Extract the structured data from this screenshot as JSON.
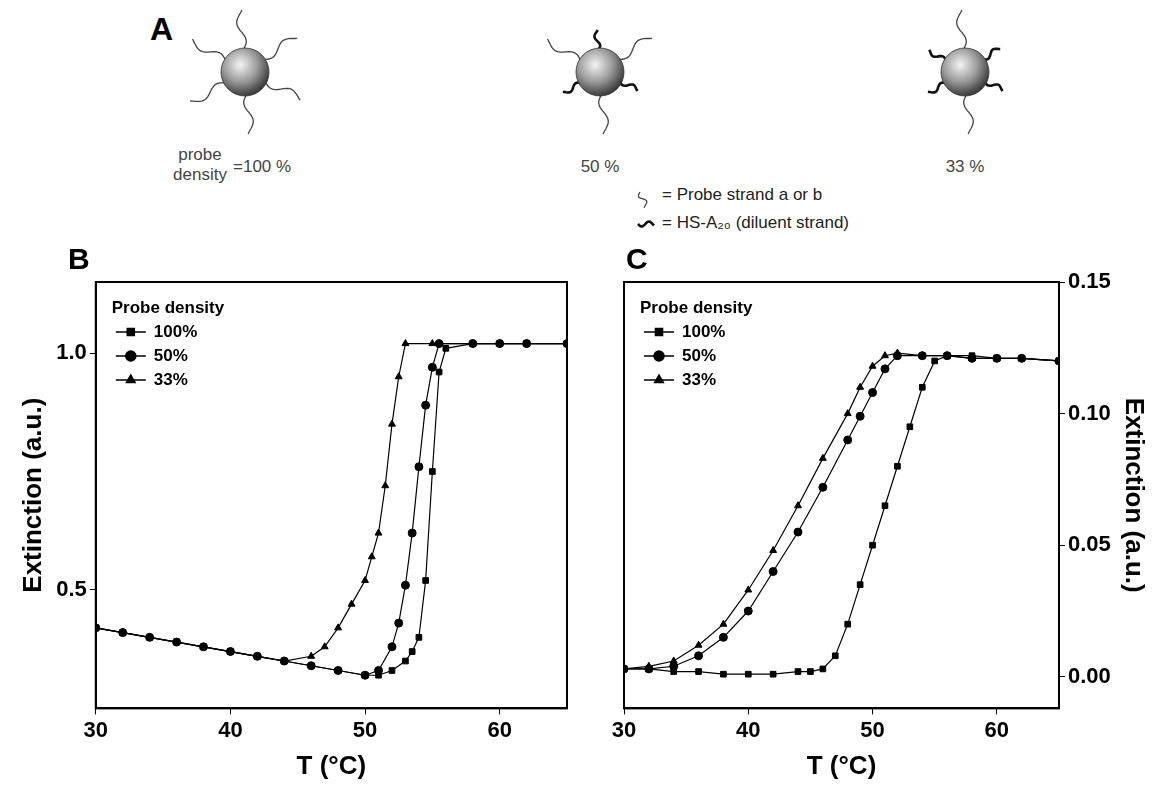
{
  "diagram": {
    "panel_label": "A",
    "particles": [
      {
        "caption": "probe density",
        "label": "=100 %"
      },
      {
        "label": "50 %"
      },
      {
        "label": "33 %"
      }
    ],
    "key": [
      {
        "symbol": "probe",
        "text": "= Probe strand a or b"
      },
      {
        "symbol": "diluent",
        "text": "= HS-A₂₀ (diluent strand)"
      }
    ]
  },
  "chart_data": [
    {
      "type": "line",
      "panel_label": "B",
      "x_label": "T (°C)",
      "y_label": "Extinction (a.u.)",
      "xlim": [
        30,
        65
      ],
      "xticks": [
        30,
        40,
        50,
        60
      ],
      "ylim": [
        0.25,
        1.15
      ],
      "yticks": [
        0.5,
        {
          "value": 1,
          "label": "1.0"
        }
      ],
      "grid": false,
      "legend": "upper left",
      "legend_title": "Probe density",
      "series": [
        {
          "name": "100%",
          "color": "#000000",
          "marker": "square",
          "line_style": "solid",
          "x": [
            30,
            32,
            34,
            36,
            38,
            40,
            42,
            44,
            46,
            48,
            50,
            51,
            52,
            53,
            53.5,
            54,
            54.5,
            55,
            55.5,
            56,
            58,
            60,
            62,
            65
          ],
          "values": [
            0.42,
            0.41,
            0.4,
            0.39,
            0.38,
            0.37,
            0.36,
            0.35,
            0.34,
            0.33,
            0.32,
            0.32,
            0.33,
            0.35,
            0.37,
            0.4,
            0.52,
            0.75,
            0.96,
            1.01,
            1.02,
            1.02,
            1.02,
            1.02
          ]
        },
        {
          "name": "50%",
          "color": "#000000",
          "marker": "circle",
          "line_style": "solid",
          "x": [
            30,
            32,
            34,
            36,
            38,
            40,
            42,
            44,
            46,
            48,
            50,
            51,
            52,
            52.5,
            53,
            53.5,
            54,
            54.5,
            55,
            55.5,
            58,
            60,
            62,
            65
          ],
          "values": [
            0.42,
            0.41,
            0.4,
            0.39,
            0.38,
            0.37,
            0.36,
            0.35,
            0.34,
            0.33,
            0.32,
            0.33,
            0.38,
            0.43,
            0.51,
            0.62,
            0.76,
            0.89,
            0.97,
            1.02,
            1.02,
            1.02,
            1.02,
            1.02
          ]
        },
        {
          "name": "33%",
          "color": "#000000",
          "marker": "triangle",
          "line_style": "solid",
          "x": [
            30,
            32,
            34,
            36,
            38,
            40,
            42,
            44,
            46,
            47,
            48,
            49,
            50,
            50.5,
            51,
            51.5,
            52,
            52.5,
            53,
            55,
            58,
            60,
            62,
            65
          ],
          "values": [
            0.42,
            0.41,
            0.4,
            0.39,
            0.38,
            0.37,
            0.36,
            0.35,
            0.36,
            0.38,
            0.42,
            0.47,
            0.52,
            0.57,
            0.62,
            0.72,
            0.85,
            0.95,
            1.02,
            1.02,
            1.02,
            1.02,
            1.02,
            1.02
          ]
        }
      ]
    },
    {
      "type": "line",
      "panel_label": "C",
      "x_label": "T (°C)",
      "y2_label": "Extinction (a.u.)",
      "xlim": [
        30,
        65
      ],
      "xticks": [
        30,
        40,
        50,
        60
      ],
      "y2lim": [
        -0.012,
        0.15
      ],
      "y2ticks": [
        {
          "value": 0,
          "label": "0.00"
        },
        0.05,
        {
          "value": 0.1,
          "label": "0.10"
        },
        0.15
      ],
      "grid": false,
      "legend": "upper left",
      "legend_title": "Probe density",
      "series": [
        {
          "name": "100%",
          "color": "#000000",
          "marker": "square",
          "line_style": "solid",
          "axis": "y2",
          "x": [
            30,
            32,
            34,
            36,
            38,
            40,
            42,
            44,
            45,
            46,
            47,
            48,
            49,
            50,
            51,
            52,
            53,
            54,
            55,
            56,
            58,
            60,
            62,
            65
          ],
          "values": [
            0.003,
            0.003,
            0.002,
            0.002,
            0.001,
            0.001,
            0.001,
            0.002,
            0.002,
            0.003,
            0.008,
            0.02,
            0.035,
            0.05,
            0.065,
            0.08,
            0.095,
            0.11,
            0.12,
            0.122,
            0.122,
            0.121,
            0.121,
            0.12
          ]
        },
        {
          "name": "50%",
          "color": "#000000",
          "marker": "circle",
          "line_style": "solid",
          "axis": "y2",
          "x": [
            30,
            32,
            34,
            36,
            38,
            40,
            42,
            44,
            46,
            48,
            49,
            50,
            51,
            52,
            54,
            56,
            58,
            60,
            62,
            65
          ],
          "values": [
            0.003,
            0.003,
            0.004,
            0.008,
            0.015,
            0.025,
            0.04,
            0.055,
            0.072,
            0.09,
            0.099,
            0.108,
            0.117,
            0.122,
            0.122,
            0.122,
            0.121,
            0.121,
            0.121,
            0.12
          ]
        },
        {
          "name": "33%",
          "color": "#000000",
          "marker": "triangle",
          "line_style": "solid",
          "axis": "y2",
          "x": [
            30,
            32,
            34,
            36,
            38,
            40,
            42,
            44,
            46,
            48,
            49,
            50,
            51,
            52,
            54,
            56,
            58,
            60,
            62,
            65
          ],
          "values": [
            0.003,
            0.004,
            0.006,
            0.012,
            0.02,
            0.033,
            0.048,
            0.065,
            0.083,
            0.1,
            0.11,
            0.118,
            0.122,
            0.123,
            0.122,
            0.122,
            0.121,
            0.121,
            0.121,
            0.12
          ]
        }
      ]
    }
  ]
}
